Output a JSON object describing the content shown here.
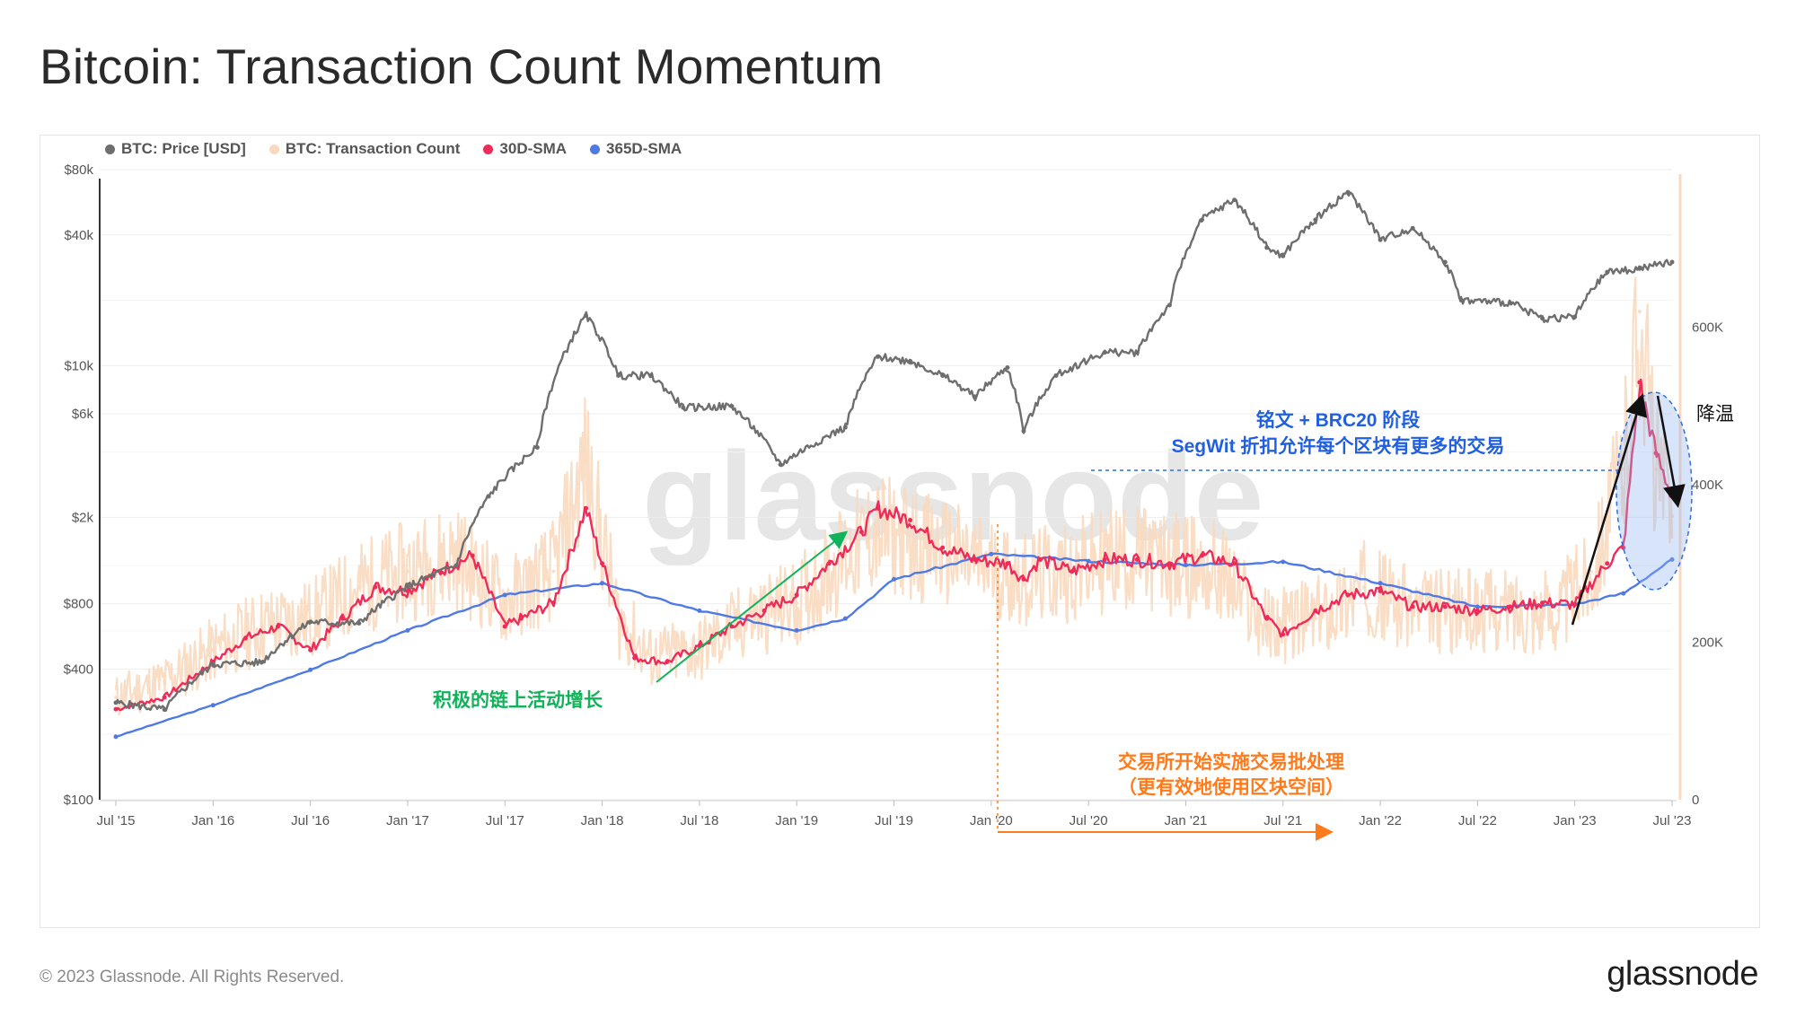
{
  "title": "Bitcoin: Transaction Count Momentum",
  "footer": {
    "copyright": "© 2023 Glassnode. All Rights Reserved.",
    "logo": "glassnode"
  },
  "watermark": "glassnode",
  "legend": [
    {
      "label": "BTC: Price [USD]",
      "color": "#6e6e6e"
    },
    {
      "label": "BTC: Transaction Count",
      "color": "#f9d9bf"
    },
    {
      "label": "30D-SMA",
      "color": "#ee2c5a"
    },
    {
      "label": "365D-SMA",
      "color": "#4f7ae6"
    }
  ],
  "annotations": {
    "inscriptions_line1": "铭文 + BRC20 阶段",
    "inscriptions_line2": "SegWit 折扣允许每个区块有更多的交易",
    "cooling": "降温",
    "onchain_growth": "积极的链上活动增长",
    "batching_line1": "交易所开始实施交易批处理",
    "batching_line2": "（更有效地使用区块空间）"
  },
  "chart_data": {
    "type": "line",
    "title": "Bitcoin: Transaction Count Momentum",
    "x_ticks": [
      "Jul '15",
      "Jan '16",
      "Jul '16",
      "Jan '17",
      "Jul '17",
      "Jan '18",
      "Jul '18",
      "Jan '19",
      "Jul '19",
      "Jan '20",
      "Jul '20",
      "Jan '21",
      "Jul '21",
      "Jan '22",
      "Jul '22",
      "Jan '23",
      "Jul '23"
    ],
    "y_left": {
      "scale": "log",
      "ticks": [
        "$100",
        "$400",
        "$800",
        "$2k",
        "$6k",
        "$10k",
        "$40k",
        "$80k"
      ],
      "tick_values": [
        100,
        400,
        800,
        2000,
        6000,
        10000,
        40000,
        80000
      ],
      "range": [
        100,
        80000
      ]
    },
    "y_right": {
      "scale": "linear",
      "ticks": [
        "0",
        "200K",
        "400K",
        "600K"
      ],
      "tick_values": [
        0,
        200000,
        400000,
        600000
      ],
      "range": [
        0,
        800000
      ]
    },
    "x_range": [
      "2015-07",
      "2023-07"
    ],
    "series": [
      {
        "name": "BTC: Price [USD]",
        "color": "#6e6e6e",
        "axis": "left",
        "x": [
          "2015-07",
          "2015-10",
          "2016-01",
          "2016-04",
          "2016-07",
          "2016-10",
          "2017-01",
          "2017-04",
          "2017-06",
          "2017-09",
          "2017-12",
          "2018-02",
          "2018-04",
          "2018-06",
          "2018-09",
          "2018-12",
          "2019-04",
          "2019-06",
          "2019-08",
          "2019-10",
          "2019-12",
          "2020-02",
          "2020-03",
          "2020-05",
          "2020-08",
          "2020-10",
          "2020-12",
          "2021-02",
          "2021-04",
          "2021-06",
          "2021-07",
          "2021-09",
          "2021-11",
          "2022-01",
          "2022-03",
          "2022-05",
          "2022-06",
          "2022-09",
          "2022-11",
          "2023-01",
          "2023-03",
          "2023-05",
          "2023-07"
        ],
        "values": [
          280,
          260,
          420,
          430,
          660,
          650,
          960,
          1200,
          2500,
          4200,
          17000,
          9000,
          9000,
          6400,
          6500,
          3500,
          5200,
          11000,
          10500,
          9000,
          7200,
          9800,
          5000,
          9000,
          11500,
          11500,
          19000,
          47000,
          58000,
          35000,
          32000,
          47000,
          63000,
          38000,
          43000,
          30000,
          20000,
          19500,
          16500,
          16800,
          27000,
          28000,
          30000
        ]
      },
      {
        "name": "BTC: Transaction Count",
        "color": "#f9d9bf",
        "axis": "right",
        "x": [
          "2015-07",
          "2015-10",
          "2016-01",
          "2016-04",
          "2016-07",
          "2016-10",
          "2017-01",
          "2017-04",
          "2017-07",
          "2017-10",
          "2017-12",
          "2018-02",
          "2018-04",
          "2018-07",
          "2018-10",
          "2019-01",
          "2019-04",
          "2019-06",
          "2019-09",
          "2019-12",
          "2020-03",
          "2020-06",
          "2020-09",
          "2020-12",
          "2021-03",
          "2021-06",
          "2021-09",
          "2021-12",
          "2022-03",
          "2022-06",
          "2022-09",
          "2022-12",
          "2023-02",
          "2023-04",
          "2023-05",
          "2023-06",
          "2023-07"
        ],
        "values": [
          130000,
          150000,
          190000,
          220000,
          230000,
          270000,
          290000,
          310000,
          250000,
          290000,
          430000,
          230000,
          180000,
          190000,
          230000,
          250000,
          310000,
          340000,
          320000,
          300000,
          280000,
          290000,
          310000,
          300000,
          290000,
          220000,
          230000,
          270000,
          240000,
          240000,
          240000,
          240000,
          290000,
          420000,
          620000,
          420000,
          360000
        ]
      },
      {
        "name": "30D-SMA",
        "color": "#ee2c5a",
        "axis": "right",
        "x": [
          "2015-07",
          "2015-10",
          "2016-01",
          "2016-03",
          "2016-05",
          "2016-07",
          "2016-09",
          "2016-11",
          "2017-01",
          "2017-03",
          "2017-05",
          "2017-07",
          "2017-08",
          "2017-10",
          "2017-12",
          "2018-01",
          "2018-03",
          "2018-05",
          "2018-07",
          "2018-09",
          "2018-11",
          "2019-01",
          "2019-03",
          "2019-05",
          "2019-06",
          "2019-08",
          "2019-10",
          "2019-12",
          "2020-02",
          "2020-03",
          "2020-04",
          "2020-06",
          "2020-08",
          "2020-10",
          "2020-12",
          "2021-02",
          "2021-04",
          "2021-06",
          "2021-07",
          "2021-09",
          "2021-11",
          "2022-01",
          "2022-03",
          "2022-05",
          "2022-07",
          "2022-09",
          "2022-11",
          "2023-01",
          "2023-03",
          "2023-04",
          "2023-05",
          "2023-06",
          "2023-07"
        ],
        "values": [
          115000,
          130000,
          175000,
          205000,
          220000,
          190000,
          230000,
          270000,
          265000,
          290000,
          310000,
          220000,
          230000,
          250000,
          370000,
          300000,
          180000,
          175000,
          195000,
          220000,
          240000,
          260000,
          300000,
          340000,
          370000,
          355000,
          320000,
          305000,
          300000,
          280000,
          305000,
          290000,
          305000,
          305000,
          300000,
          310000,
          300000,
          230000,
          210000,
          240000,
          260000,
          265000,
          245000,
          245000,
          240000,
          245000,
          250000,
          248000,
          300000,
          320000,
          530000,
          440000,
          385000
        ]
      },
      {
        "name": "365D-SMA",
        "color": "#4f7ae6",
        "axis": "right",
        "x": [
          "2015-07",
          "2016-01",
          "2016-07",
          "2017-01",
          "2017-07",
          "2018-01",
          "2018-07",
          "2019-01",
          "2019-04",
          "2019-07",
          "2020-01",
          "2020-07",
          "2021-01",
          "2021-07",
          "2022-01",
          "2022-07",
          "2023-01",
          "2023-04",
          "2023-07"
        ],
        "values": [
          80000,
          120000,
          165000,
          215000,
          260000,
          275000,
          240000,
          215000,
          230000,
          280000,
          312000,
          303000,
          298000,
          302000,
          275000,
          245000,
          248000,
          262000,
          305000
        ]
      }
    ]
  }
}
